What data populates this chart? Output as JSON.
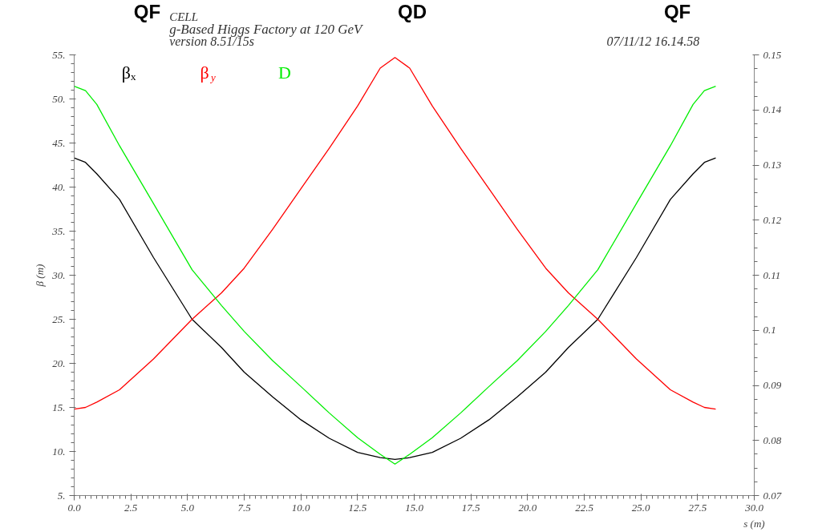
{
  "chart_data": {
    "type": "line",
    "title": "CELL",
    "subtitle": "g-Based Higgs Factory at 120 GeV",
    "xlabel": "s (m)",
    "ylabel": "β (m)",
    "annotations": [
      "version 8.51/15s",
      "07/11/12  16.14.58",
      "QF",
      "QD",
      "QF"
    ],
    "x": [
      0,
      0.5,
      1,
      2,
      3.5,
      5.2,
      6.5,
      7.5,
      8.75,
      10,
      11.25,
      12.5,
      13.5,
      14.15,
      14.8,
      15.8,
      17.05,
      18.3,
      19.55,
      20.8,
      21.8,
      23.1,
      24.8,
      26.3,
      27.3,
      27.8,
      28.3
    ],
    "series": [
      {
        "name": "βₓ",
        "color": "#000000",
        "values": [
          43.3,
          42.8,
          41.5,
          38.6,
          32,
          25.0,
          21.8,
          19.0,
          16.2,
          13.6,
          11.5,
          9.9,
          9.3,
          9.1,
          9.3,
          9.9,
          11.5,
          13.6,
          16.2,
          19.0,
          21.8,
          25.0,
          32,
          38.6,
          41.5,
          42.8,
          43.3
        ]
      },
      {
        "name": "β$_{y}$",
        "color": "#ff0000",
        "values": [
          14.8,
          15.0,
          15.6,
          17.0,
          20.5,
          25.0,
          28,
          30.8,
          35.2,
          39.8,
          44.4,
          49.2,
          53.5,
          54.7,
          53.5,
          49.2,
          44.4,
          39.8,
          35.2,
          30.8,
          28,
          25.0,
          20.5,
          17.0,
          15.6,
          15.0,
          14.8
        ]
      },
      {
        "name": "D",
        "color": "#00ee00",
        "axis": "y2",
        "values": [
          0.1443,
          0.1435,
          0.141,
          0.1335,
          0.123,
          0.111,
          0.1045,
          0.0998,
          0.0945,
          0.0898,
          0.085,
          0.0805,
          0.0775,
          0.0757,
          0.0775,
          0.0805,
          0.085,
          0.0898,
          0.0945,
          0.0998,
          0.1045,
          0.111,
          0.123,
          0.1335,
          0.141,
          0.1435,
          0.1443
        ]
      }
    ],
    "xlim": [
      0,
      30
    ],
    "xticks": [
      {
        "value": 0,
        "label": "0.0"
      },
      {
        "value": 2.5,
        "label": "2.5"
      },
      {
        "value": 5,
        "label": "5.0"
      },
      {
        "value": 7.5,
        "label": "7.5"
      },
      {
        "value": 10,
        "label": "10.0"
      },
      {
        "value": 12.5,
        "label": "12.5"
      },
      {
        "value": 15,
        "label": "15.0"
      },
      {
        "value": 17.5,
        "label": "17.5"
      },
      {
        "value": 20,
        "label": "20.0"
      },
      {
        "value": 22.5,
        "label": "22.5"
      },
      {
        "value": 25,
        "label": "25.0"
      },
      {
        "value": 27.5,
        "label": "27.5"
      },
      {
        "value": 30,
        "label": "30.0"
      }
    ],
    "ylim": [
      5,
      55
    ],
    "yticks": [
      {
        "value": 5,
        "label": "5."
      },
      {
        "value": 10,
        "label": "10."
      },
      {
        "value": 15,
        "label": "15."
      },
      {
        "value": 20,
        "label": "20."
      },
      {
        "value": 25,
        "label": "25."
      },
      {
        "value": 30,
        "label": "30."
      },
      {
        "value": 35,
        "label": "35."
      },
      {
        "value": 40,
        "label": "40."
      },
      {
        "value": 45,
        "label": "45."
      },
      {
        "value": 50,
        "label": "50."
      },
      {
        "value": 55,
        "label": "55."
      }
    ],
    "y2lim": [
      0.07,
      0.15
    ],
    "y2ticks": [
      0.07,
      0.08,
      0.09,
      0.1,
      0.11,
      0.12,
      0.13,
      0.14,
      0.15
    ],
    "grid": false,
    "legend": "top left"
  }
}
